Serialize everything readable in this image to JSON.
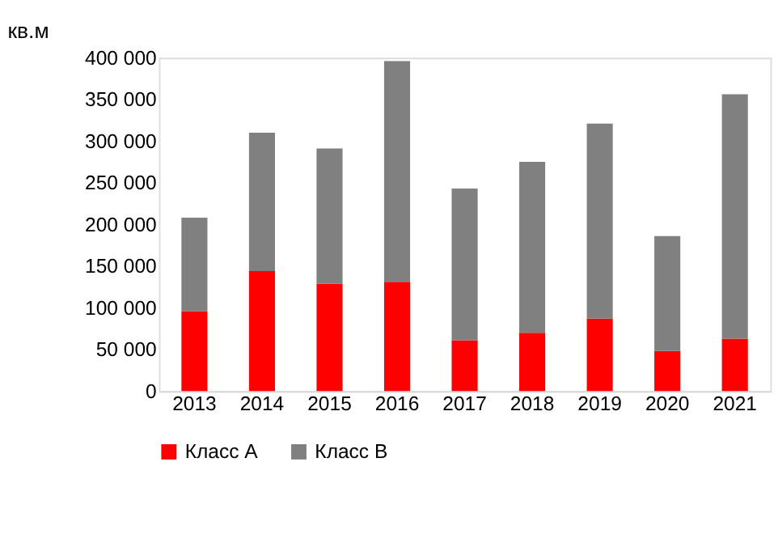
{
  "chart_data": {
    "type": "bar",
    "stacked": true,
    "ylabel": "кв.м",
    "categories": [
      "2013",
      "2014",
      "2015",
      "2016",
      "2017",
      "2018",
      "2019",
      "2020",
      "2021"
    ],
    "series": [
      {
        "name": "Класс А",
        "color": "#ff0000",
        "values": [
          96000,
          144000,
          129000,
          131000,
          61000,
          70000,
          87000,
          48000,
          63000
        ]
      },
      {
        "name": "Класс В",
        "color": "#808080",
        "values": [
          112000,
          166000,
          162000,
          265000,
          182000,
          205000,
          234000,
          138000,
          293000
        ]
      }
    ],
    "ylim": [
      0,
      400000
    ],
    "yticks": [
      {
        "value": 0,
        "label": "0"
      },
      {
        "value": 50000,
        "label": "50 000"
      },
      {
        "value": 100000,
        "label": "100 000"
      },
      {
        "value": 150000,
        "label": "150 000"
      },
      {
        "value": 200000,
        "label": "200 000"
      },
      {
        "value": 250000,
        "label": "250 000"
      },
      {
        "value": 300000,
        "label": "300 000"
      },
      {
        "value": 350000,
        "label": "350 000"
      },
      {
        "value": 400000,
        "label": "400 000"
      }
    ],
    "grid": false,
    "legend": "bottom"
  }
}
